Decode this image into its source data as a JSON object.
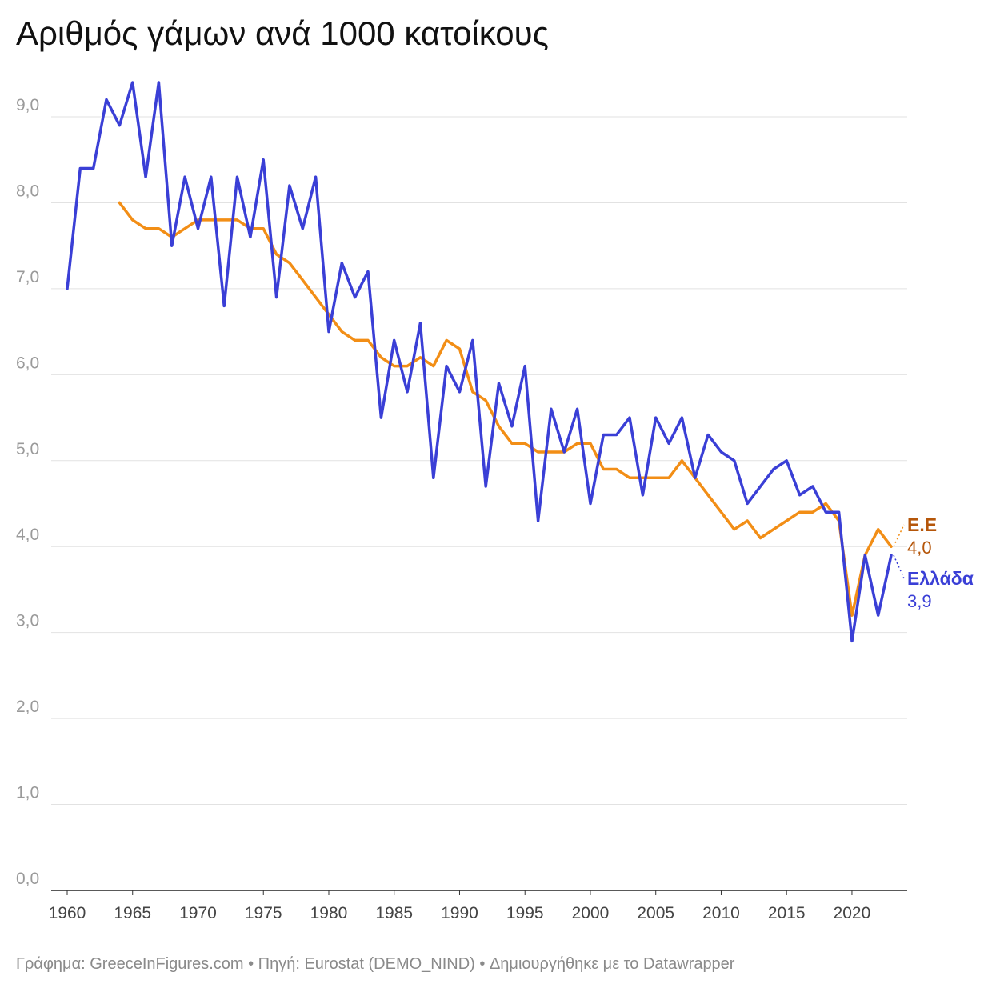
{
  "title": "Αριθμός γάμων ανά 1000 κατοίκους",
  "footer": "Γράφημα: GreeceInFigures.com • Πηγή: Eurostat (DEMO_NIND) • Δημιουργήθηκε με το Datawrapper",
  "chart_data": {
    "type": "line",
    "ylim": [
      0,
      9.5
    ],
    "xlim": [
      1960,
      2024
    ],
    "yticks": [
      0,
      1,
      2,
      3,
      4,
      5,
      6,
      7,
      8,
      9
    ],
    "ytick_labels": [
      "0,0",
      "1,0",
      "2,0",
      "3,0",
      "4,0",
      "5,0",
      "6,0",
      "7,0",
      "8,0",
      "9,0"
    ],
    "xticks": [
      1960,
      1965,
      1970,
      1975,
      1980,
      1985,
      1990,
      1995,
      2000,
      2005,
      2010,
      2015,
      2020
    ],
    "xtick_labels": [
      "1960",
      "1965",
      "1970",
      "1975",
      "1980",
      "1985",
      "1990",
      "1995",
      "2000",
      "2005",
      "2010",
      "2015",
      "2020"
    ],
    "grid": true,
    "series": [
      {
        "name": "Ε.Ε",
        "end_label": "4,0",
        "color": "#f28e16",
        "label_color": "#b5560a",
        "x": [
          1964,
          1965,
          1966,
          1967,
          1968,
          1969,
          1970,
          1971,
          1972,
          1973,
          1974,
          1975,
          1976,
          1977,
          1978,
          1979,
          1980,
          1981,
          1982,
          1983,
          1984,
          1985,
          1986,
          1987,
          1988,
          1989,
          1990,
          1991,
          1992,
          1993,
          1994,
          1995,
          1996,
          1997,
          1998,
          1999,
          2000,
          2001,
          2002,
          2003,
          2004,
          2005,
          2006,
          2007,
          2008,
          2009,
          2010,
          2011,
          2012,
          2013,
          2014,
          2015,
          2016,
          2017,
          2018,
          2019,
          2020,
          2021,
          2022,
          2023
        ],
        "values": [
          8.0,
          7.8,
          7.7,
          7.7,
          7.6,
          7.7,
          7.8,
          7.8,
          7.8,
          7.8,
          7.7,
          7.7,
          7.4,
          7.3,
          7.1,
          6.9,
          6.7,
          6.5,
          6.4,
          6.4,
          6.2,
          6.1,
          6.1,
          6.2,
          6.1,
          6.4,
          6.3,
          5.8,
          5.7,
          5.4,
          5.2,
          5.2,
          5.1,
          5.1,
          5.1,
          5.2,
          5.2,
          4.9,
          4.9,
          4.8,
          4.8,
          4.8,
          4.8,
          5.0,
          4.8,
          4.6,
          4.4,
          4.2,
          4.3,
          4.1,
          4.2,
          4.3,
          4.4,
          4.4,
          4.5,
          4.3,
          3.2,
          3.9,
          4.2,
          4.0
        ]
      },
      {
        "name": "Ελλάδα",
        "end_label": "3,9",
        "color": "#3a3fd6",
        "label_color": "#3a3fd6",
        "x": [
          1960,
          1961,
          1962,
          1963,
          1964,
          1965,
          1966,
          1967,
          1968,
          1969,
          1970,
          1971,
          1972,
          1973,
          1974,
          1975,
          1976,
          1977,
          1978,
          1979,
          1980,
          1981,
          1982,
          1983,
          1984,
          1985,
          1986,
          1987,
          1988,
          1989,
          1990,
          1991,
          1992,
          1993,
          1994,
          1995,
          1996,
          1997,
          1998,
          1999,
          2000,
          2001,
          2002,
          2003,
          2004,
          2005,
          2006,
          2007,
          2008,
          2009,
          2010,
          2011,
          2012,
          2013,
          2014,
          2015,
          2016,
          2017,
          2018,
          2019,
          2020,
          2021,
          2022,
          2023
        ],
        "values": [
          7.0,
          8.4,
          8.4,
          9.2,
          8.9,
          9.4,
          8.3,
          9.4,
          7.5,
          8.3,
          7.7,
          8.3,
          6.8,
          8.3,
          7.6,
          8.5,
          6.9,
          8.2,
          7.7,
          8.3,
          6.5,
          7.3,
          6.9,
          7.2,
          5.5,
          6.4,
          5.8,
          6.6,
          4.8,
          6.1,
          5.8,
          6.4,
          4.7,
          5.9,
          5.4,
          6.1,
          4.3,
          5.6,
          5.1,
          5.6,
          4.5,
          5.3,
          5.3,
          5.5,
          4.6,
          5.5,
          5.2,
          5.5,
          4.8,
          5.3,
          5.1,
          5.0,
          4.5,
          4.7,
          4.9,
          5.0,
          4.6,
          4.7,
          4.4,
          4.4,
          2.9,
          3.9,
          3.2,
          3.9
        ]
      }
    ]
  }
}
